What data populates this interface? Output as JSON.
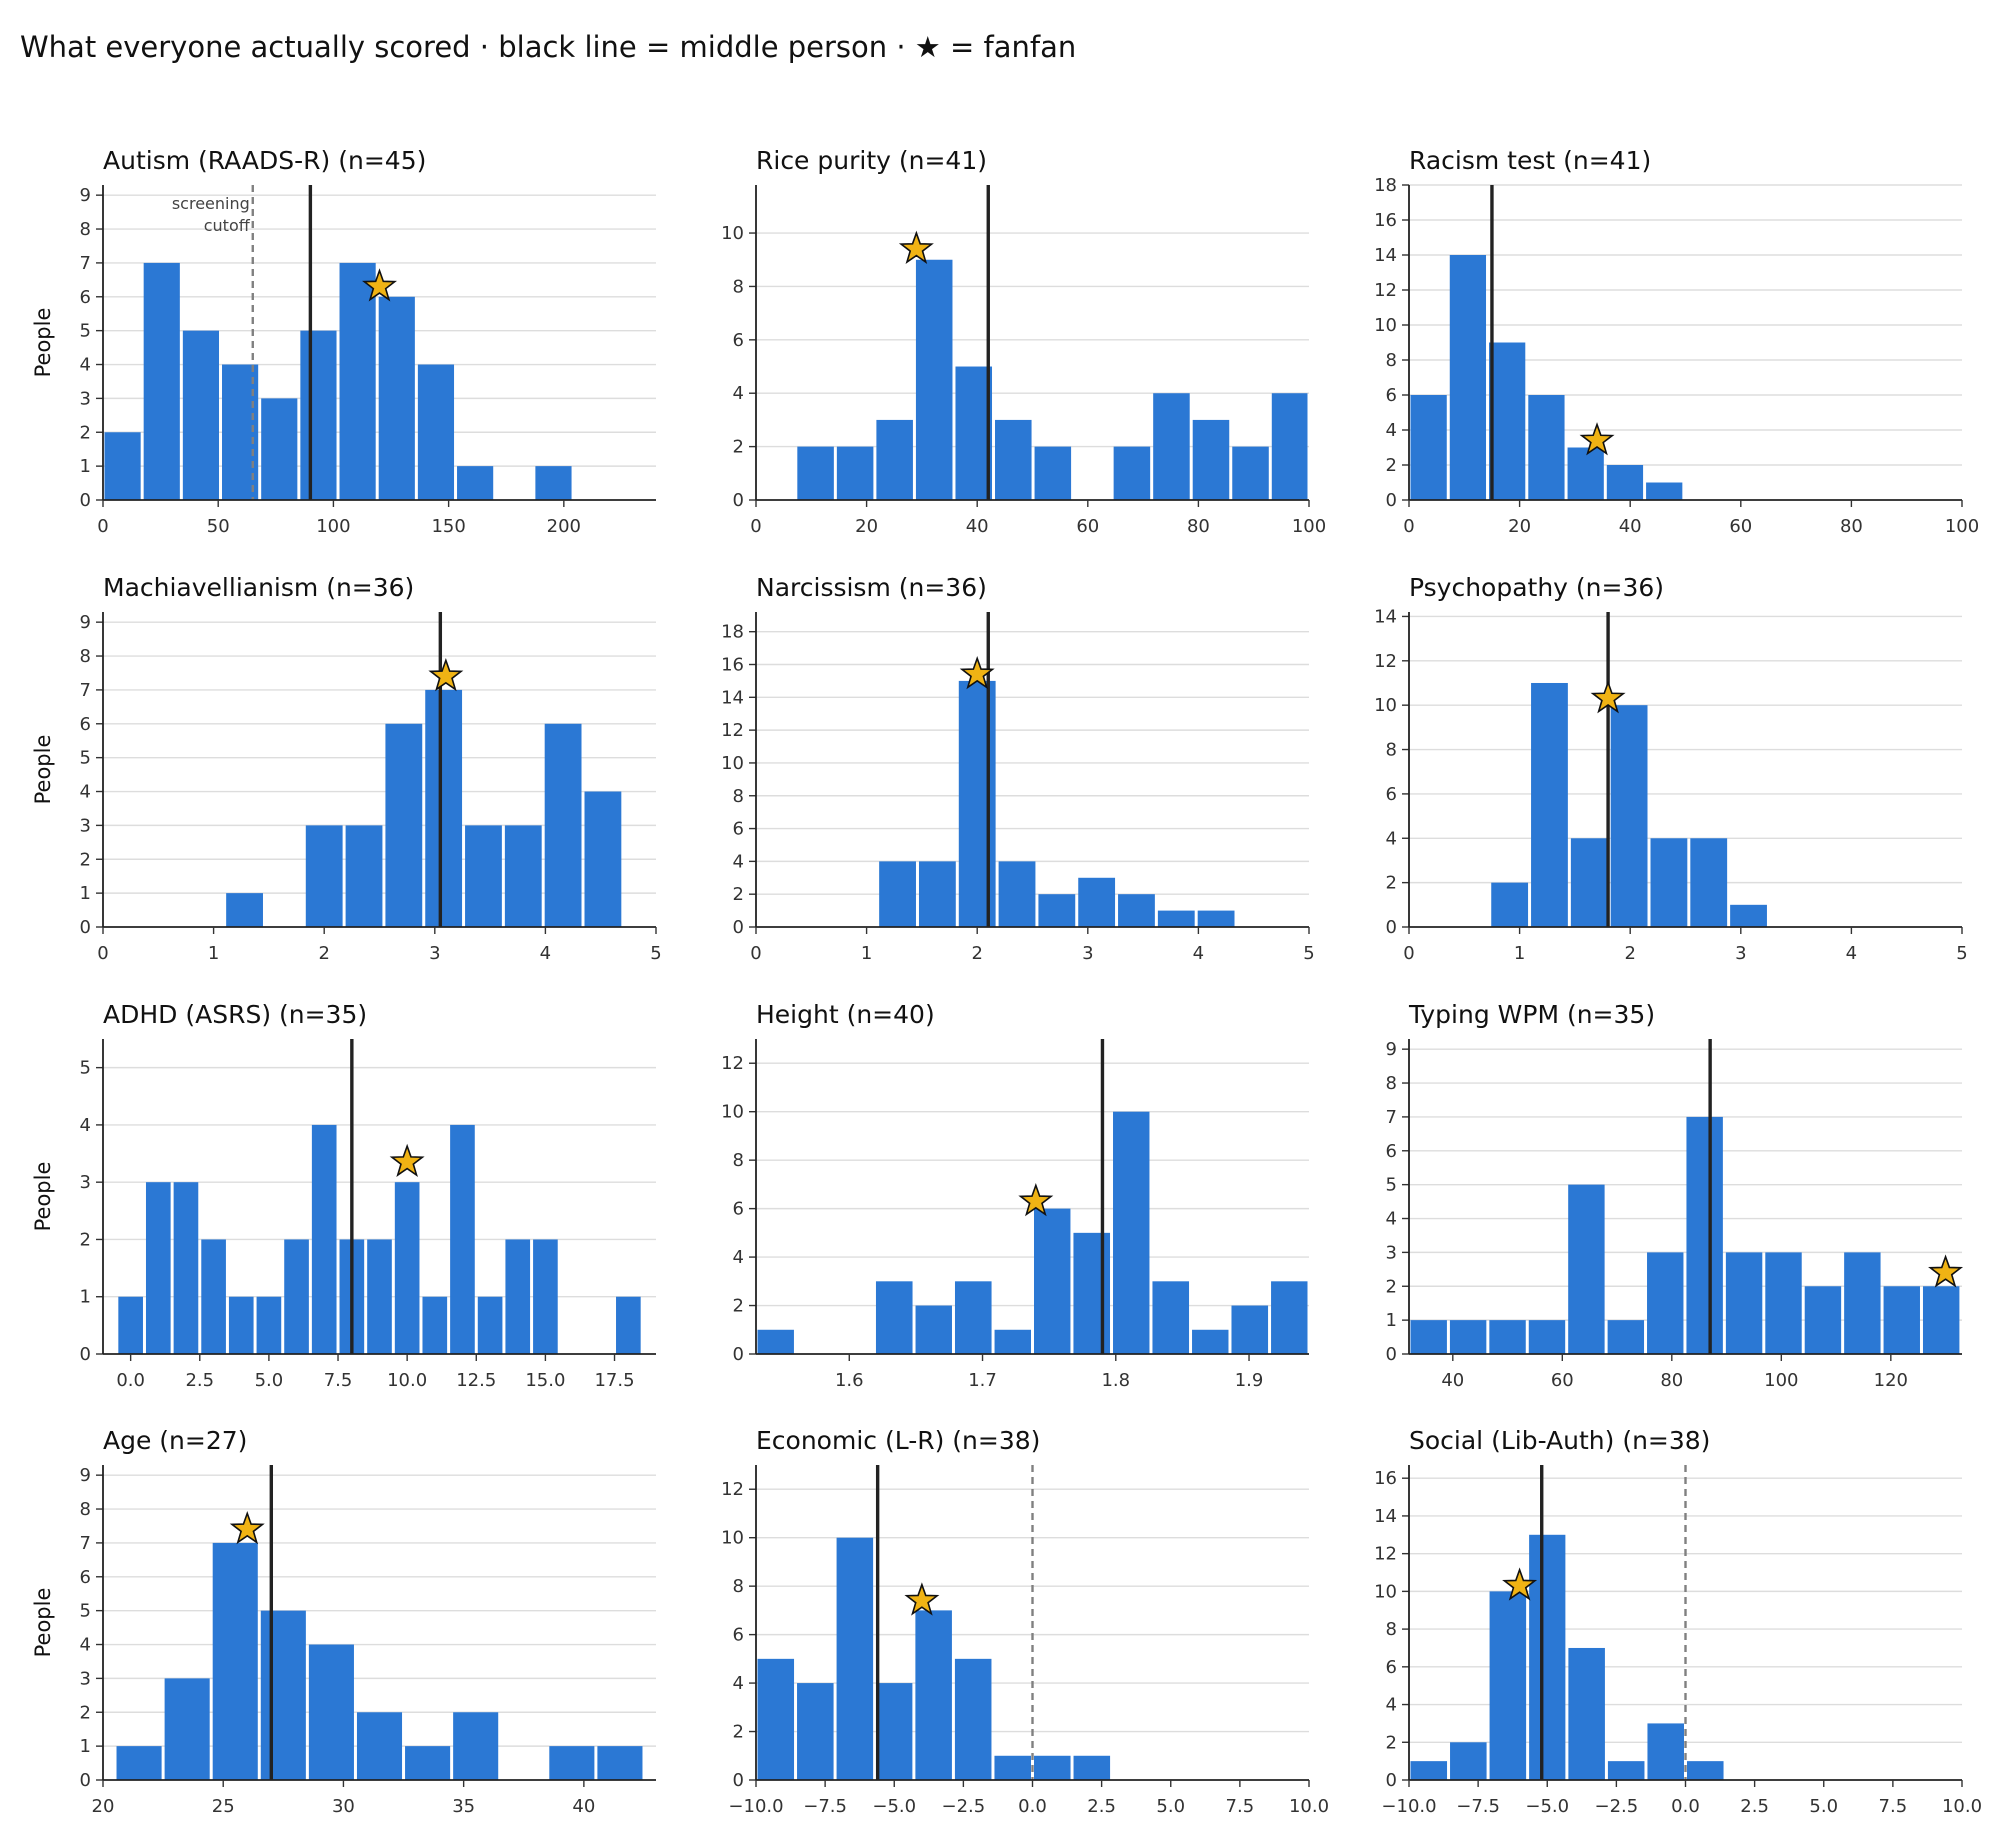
{
  "figure_title": "What everyone actually scored · black line = middle person · ★ = fanfan",
  "colors": {
    "bar": "#2b78d4",
    "median": "#222222",
    "star_fill": "#f0b314",
    "star_stroke": "#111111",
    "grid": "#dddddd",
    "dashed": "#808080"
  },
  "chart_data": [
    {
      "type": "bar",
      "title": "Autism (RAADS-R) (n=45)",
      "ylabel": "People",
      "xlim": [
        0,
        240
      ],
      "ylim": [
        0,
        9.3
      ],
      "xticks": [
        0,
        50,
        100,
        150,
        200
      ],
      "xtick_labels": [
        "0",
        "50",
        "100",
        "150",
        "200"
      ],
      "yticks": [
        0,
        1,
        2,
        3,
        4,
        5,
        6,
        7,
        8,
        9
      ],
      "ytick_labels": [
        "0",
        "1",
        "2",
        "3",
        "4",
        "5",
        "6",
        "7",
        "8",
        "9"
      ],
      "bin_edges": [
        0,
        17,
        34,
        51,
        68,
        85,
        102,
        119,
        136,
        153,
        170,
        187,
        204
      ],
      "values": [
        2,
        7,
        5,
        4,
        3,
        5,
        7,
        6,
        4,
        1,
        0,
        1
      ],
      "median": 90,
      "fanfan": {
        "x": 120,
        "y": 6.3
      },
      "reference_line": {
        "x": 65,
        "label": [
          "screening",
          "cutoff"
        ]
      }
    },
    {
      "type": "bar",
      "title": "Rice purity (n=41)",
      "ylabel": "",
      "xlim": [
        0,
        100
      ],
      "ylim": [
        0,
        11.8
      ],
      "xticks": [
        0,
        20,
        40,
        60,
        80,
        100
      ],
      "xtick_labels": [
        "0",
        "20",
        "40",
        "60",
        "80",
        "100"
      ],
      "yticks": [
        0,
        2,
        4,
        6,
        8,
        10
      ],
      "ytick_labels": [
        "0",
        "2",
        "4",
        "6",
        "8",
        "10"
      ],
      "bin_edges": [
        7.2,
        14.35,
        21.5,
        28.65,
        35.8,
        42.95,
        50.1,
        57.25,
        64.4,
        71.55,
        78.7,
        85.85,
        93,
        100
      ],
      "values": [
        2,
        2,
        3,
        9,
        5,
        3,
        2,
        0,
        2,
        4,
        3,
        2,
        4
      ],
      "median": 42,
      "fanfan": {
        "x": 29,
        "y": 9.4
      }
    },
    {
      "type": "bar",
      "title": "Racism test (n=41)",
      "ylabel": "",
      "xlim": [
        0,
        100
      ],
      "ylim": [
        0,
        18
      ],
      "xticks": [
        0,
        20,
        40,
        60,
        80,
        100
      ],
      "xtick_labels": [
        "0",
        "20",
        "40",
        "60",
        "80",
        "100"
      ],
      "yticks": [
        0,
        2,
        4,
        6,
        8,
        10,
        12,
        14,
        16,
        18
      ],
      "ytick_labels": [
        "0",
        "2",
        "4",
        "6",
        "8",
        "10",
        "12",
        "14",
        "16",
        "18"
      ],
      "bin_edges": [
        0,
        7.1,
        14.2,
        21.3,
        28.4,
        35.5,
        42.6,
        49.7
      ],
      "values": [
        6,
        14,
        9,
        6,
        3,
        2,
        1
      ],
      "median": 15,
      "fanfan": {
        "x": 34,
        "y": 3.4
      }
    },
    {
      "type": "bar",
      "title": "Machiavellianism (n=36)",
      "ylabel": "People",
      "xlim": [
        0,
        5
      ],
      "ylim": [
        0,
        9.3
      ],
      "xticks": [
        0,
        1,
        2,
        3,
        4,
        5
      ],
      "xtick_labels": [
        "0",
        "1",
        "2",
        "3",
        "4",
        "5"
      ],
      "yticks": [
        0,
        1,
        2,
        3,
        4,
        5,
        6,
        7,
        8,
        9
      ],
      "ytick_labels": [
        "0",
        "1",
        "2",
        "3",
        "4",
        "5",
        "6",
        "7",
        "8",
        "9"
      ],
      "bin_edges": [
        1.1,
        1.46,
        1.82,
        2.18,
        2.54,
        2.9,
        3.26,
        3.62,
        3.98,
        4.34,
        4.7
      ],
      "values": [
        1,
        0,
        3,
        3,
        6,
        7,
        3,
        3,
        6,
        4
      ],
      "median": 3.05,
      "fanfan": {
        "x": 3.1,
        "y": 7.4
      }
    },
    {
      "type": "bar",
      "title": "Narcissism (n=36)",
      "ylabel": "",
      "xlim": [
        0,
        5
      ],
      "ylim": [
        0,
        19.2
      ],
      "xticks": [
        0,
        1,
        2,
        3,
        4,
        5
      ],
      "xtick_labels": [
        "0",
        "1",
        "2",
        "3",
        "4",
        "5"
      ],
      "yticks": [
        0,
        2,
        4,
        6,
        8,
        10,
        12,
        14,
        16,
        18
      ],
      "ytick_labels": [
        "0",
        "2",
        "4",
        "6",
        "8",
        "10",
        "12",
        "14",
        "16",
        "18"
      ],
      "bin_edges": [
        1.1,
        1.46,
        1.82,
        2.18,
        2.54,
        2.9,
        3.26,
        3.62,
        3.98,
        4.34
      ],
      "values": [
        4,
        4,
        15,
        4,
        2,
        3,
        2,
        1,
        1
      ],
      "median": 2.1,
      "fanfan": {
        "x": 2.0,
        "y": 15.4
      }
    },
    {
      "type": "bar",
      "title": "Psychopathy (n=36)",
      "ylabel": "",
      "xlim": [
        0,
        5
      ],
      "ylim": [
        0,
        14.2
      ],
      "xticks": [
        0,
        1,
        2,
        3,
        4,
        5
      ],
      "xtick_labels": [
        "0",
        "1",
        "2",
        "3",
        "4",
        "5"
      ],
      "yticks": [
        0,
        2,
        4,
        6,
        8,
        10,
        12,
        14
      ],
      "ytick_labels": [
        "0",
        "2",
        "4",
        "6",
        "8",
        "10",
        "12",
        "14"
      ],
      "bin_edges": [
        0.73,
        1.09,
        1.45,
        1.81,
        2.17,
        2.53,
        2.89,
        3.25
      ],
      "values": [
        2,
        11,
        4,
        10,
        4,
        4,
        1
      ],
      "median": 1.8,
      "fanfan": {
        "x": 1.8,
        "y": 10.3
      }
    },
    {
      "type": "bar",
      "title": "ADHD (ASRS) (n=35)",
      "ylabel": "People",
      "xlim": [
        -1,
        19
      ],
      "ylim": [
        0,
        5.5
      ],
      "xticks": [
        0,
        2.5,
        5,
        7.5,
        10,
        12.5,
        15,
        17.5
      ],
      "xtick_labels": [
        "0.0",
        "2.5",
        "5.0",
        "7.5",
        "10.0",
        "12.5",
        "15.0",
        "17.5"
      ],
      "yticks": [
        0,
        1,
        2,
        3,
        4,
        5
      ],
      "ytick_labels": [
        "0",
        "1",
        "2",
        "3",
        "4",
        "5"
      ],
      "bin_edges": [
        -0.5,
        0.5,
        1.5,
        2.5,
        3.5,
        4.5,
        5.5,
        6.5,
        7.5,
        8.5,
        9.5,
        10.5,
        11.5,
        12.5,
        13.5,
        14.5,
        15.5,
        16.5,
        17.5,
        18.5
      ],
      "values": [
        1,
        3,
        3,
        2,
        1,
        1,
        2,
        4,
        2,
        2,
        3,
        1,
        4,
        1,
        2,
        2,
        0,
        0,
        1
      ],
      "median": 8,
      "fanfan": {
        "x": 10,
        "y": 3.35
      }
    },
    {
      "type": "bar",
      "title": "Height (n=40)",
      "ylabel": "",
      "xlim": [
        1.53,
        1.945
      ],
      "ylim": [
        0,
        13
      ],
      "xticks": [
        1.6,
        1.7,
        1.8,
        1.9
      ],
      "xtick_labels": [
        "1.6",
        "1.7",
        "1.8",
        "1.9"
      ],
      "yticks": [
        0,
        2,
        4,
        6,
        8,
        10,
        12
      ],
      "ytick_labels": [
        "0",
        "2",
        "4",
        "6",
        "8",
        "10",
        "12"
      ],
      "bin_edges": [
        1.53,
        1.5596,
        1.5893,
        1.6189,
        1.6486,
        1.6782,
        1.7079,
        1.7375,
        1.7671,
        1.7968,
        1.8264,
        1.8561,
        1.8857,
        1.9154,
        1.945
      ],
      "values": [
        1,
        0,
        0,
        3,
        2,
        3,
        1,
        6,
        5,
        10,
        3,
        1,
        2,
        3
      ],
      "median": 1.79,
      "fanfan": {
        "x": 1.74,
        "y": 6.3
      }
    },
    {
      "type": "bar",
      "title": "Typing WPM (n=35)",
      "ylabel": "",
      "xlim": [
        32,
        133
      ],
      "ylim": [
        0,
        9.3
      ],
      "xticks": [
        40,
        60,
        80,
        100,
        120
      ],
      "xtick_labels": [
        "40",
        "60",
        "80",
        "100",
        "120"
      ],
      "yticks": [
        0,
        1,
        2,
        3,
        4,
        5,
        6,
        7,
        8,
        9
      ],
      "ytick_labels": [
        "0",
        "1",
        "2",
        "3",
        "4",
        "5",
        "6",
        "7",
        "8",
        "9"
      ],
      "bin_edges": [
        32,
        39.2,
        46.4,
        53.6,
        60.8,
        68,
        75.2,
        82.4,
        89.6,
        96.8,
        104,
        111.2,
        118.4,
        125.6,
        132.8
      ],
      "values": [
        1,
        1,
        1,
        1,
        5,
        1,
        3,
        7,
        3,
        3,
        2,
        3,
        2,
        2
      ],
      "median": 87,
      "fanfan": {
        "x": 130,
        "y": 2.4
      }
    },
    {
      "type": "bar",
      "title": "Age (n=27)",
      "ylabel": "People",
      "xlim": [
        20,
        43
      ],
      "ylim": [
        0,
        9.3
      ],
      "xticks": [
        20,
        25,
        30,
        35,
        40
      ],
      "xtick_labels": [
        "20",
        "25",
        "30",
        "35",
        "40"
      ],
      "yticks": [
        0,
        1,
        2,
        3,
        4,
        5,
        6,
        7,
        8,
        9
      ],
      "ytick_labels": [
        "0",
        "1",
        "2",
        "3",
        "4",
        "5",
        "6",
        "7",
        "8",
        "9"
      ],
      "bin_edges": [
        20.5,
        22.5,
        24.5,
        26.5,
        28.5,
        30.5,
        32.5,
        34.5,
        36.5,
        38.5,
        40.5,
        42.5
      ],
      "values": [
        1,
        3,
        7,
        5,
        4,
        2,
        1,
        2,
        0,
        1,
        1
      ],
      "median": 27,
      "fanfan": {
        "x": 26,
        "y": 7.4
      }
    },
    {
      "type": "bar",
      "title": "Economic (L-R) (n=38)",
      "ylabel": "",
      "xlim": [
        -10,
        10
      ],
      "ylim": [
        0,
        13
      ],
      "xticks": [
        -10,
        -7.5,
        -5,
        -2.5,
        0,
        2.5,
        5,
        7.5,
        10
      ],
      "xtick_labels": [
        "−10.0",
        "−7.5",
        "−5.0",
        "−2.5",
        "0.0",
        "2.5",
        "5.0",
        "7.5",
        "10.0"
      ],
      "yticks": [
        0,
        2,
        4,
        6,
        8,
        10,
        12
      ],
      "ytick_labels": [
        "0",
        "2",
        "4",
        "6",
        "8",
        "10",
        "12"
      ],
      "bin_edges": [
        -10,
        -8.57,
        -7.14,
        -5.71,
        -4.29,
        -2.86,
        -1.43,
        0,
        1.43,
        2.86
      ],
      "values": [
        5,
        4,
        10,
        4,
        7,
        5,
        1,
        1,
        1
      ],
      "median": -5.6,
      "fanfan": {
        "x": -4,
        "y": 7.4
      },
      "reference_line": {
        "x": 0
      }
    },
    {
      "type": "bar",
      "title": "Social (Lib-Auth) (n=38)",
      "ylabel": "",
      "xlim": [
        -10,
        10
      ],
      "ylim": [
        0,
        16.7
      ],
      "xticks": [
        -10,
        -7.5,
        -5,
        -2.5,
        0,
        2.5,
        5,
        7.5,
        10
      ],
      "xtick_labels": [
        "−10.0",
        "−7.5",
        "−5.0",
        "−2.5",
        "0.0",
        "2.5",
        "5.0",
        "7.5",
        "10.0"
      ],
      "yticks": [
        0,
        2,
        4,
        6,
        8,
        10,
        12,
        14,
        16
      ],
      "ytick_labels": [
        "0",
        "2",
        "4",
        "6",
        "8",
        "10",
        "12",
        "14",
        "16"
      ],
      "bin_edges": [
        -10,
        -8.57,
        -7.14,
        -5.71,
        -4.29,
        -2.86,
        -1.43,
        0,
        1.43
      ],
      "values": [
        1,
        2,
        10,
        13,
        7,
        1,
        3,
        1
      ],
      "median": -5.2,
      "fanfan": {
        "x": -6,
        "y": 10.3
      },
      "reference_line": {
        "x": 0
      }
    }
  ]
}
